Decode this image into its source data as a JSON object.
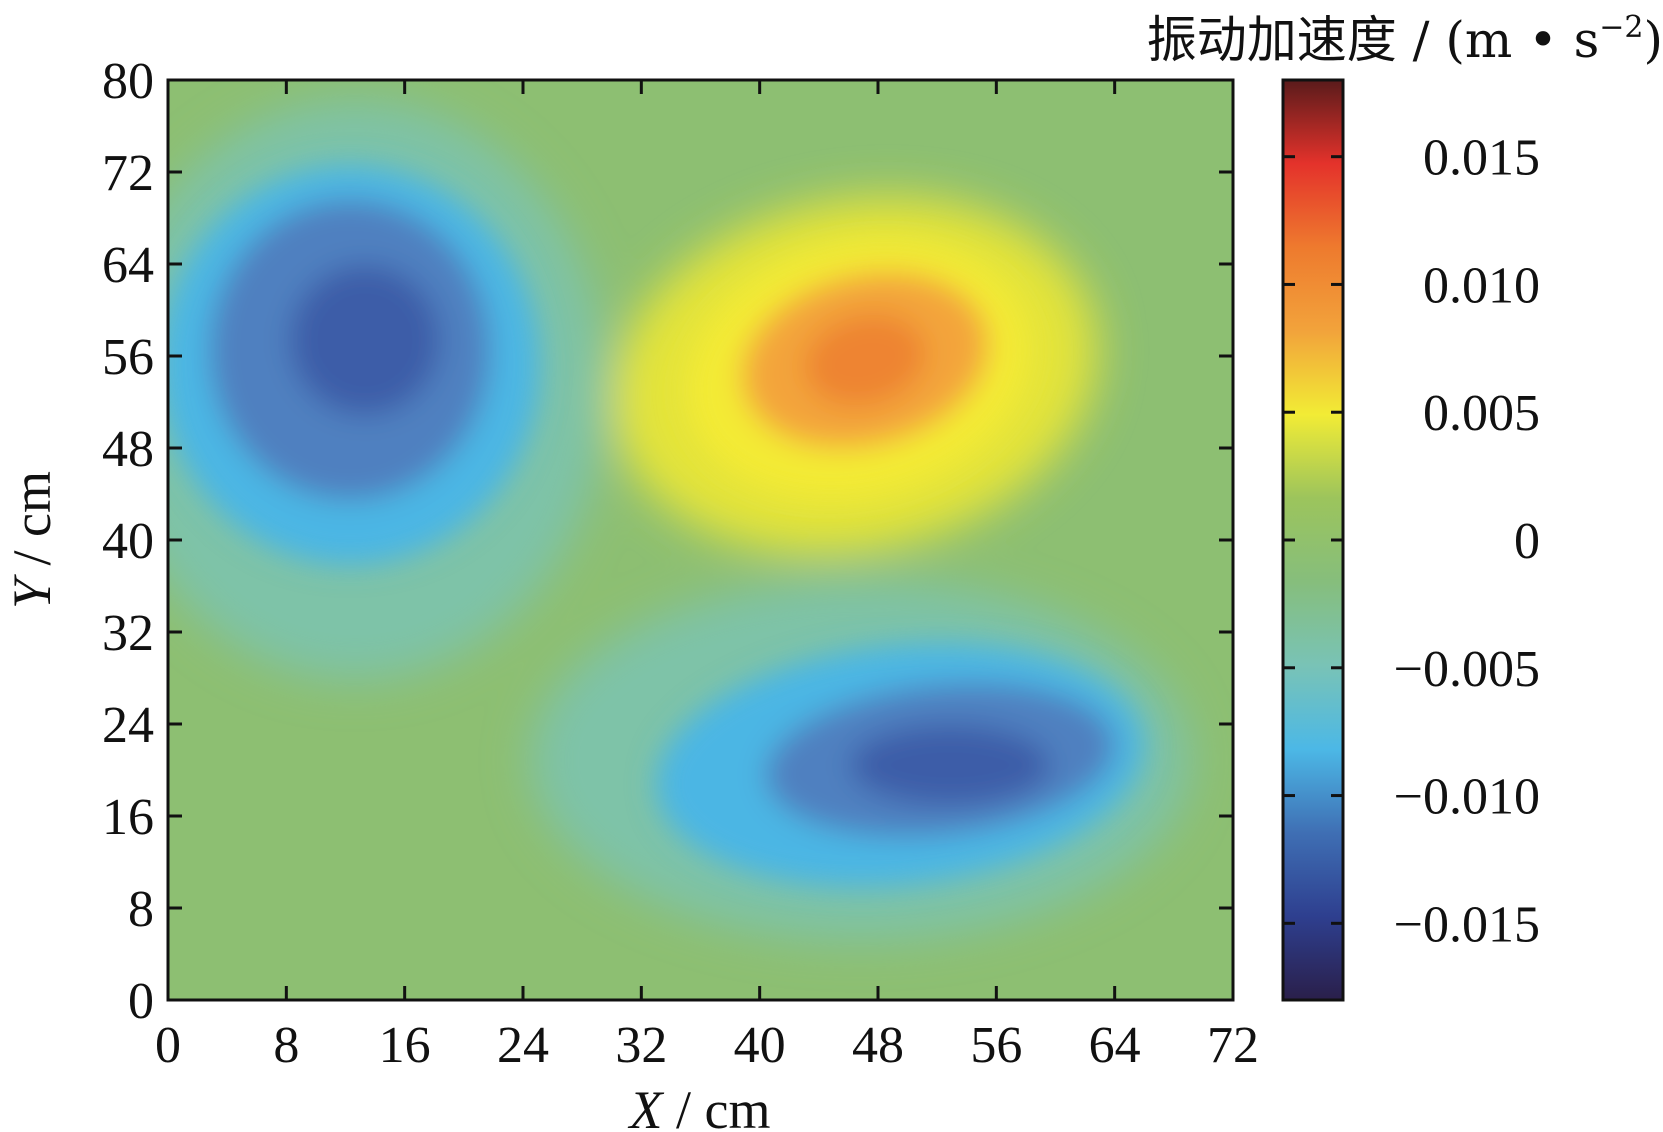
{
  "chart_data": {
    "type": "heatmap",
    "xlabel": {
      "var": "X",
      "unit": " / cm"
    },
    "ylabel": {
      "var": "Y",
      "unit": " / cm"
    },
    "xlim": [
      0,
      72
    ],
    "ylim": [
      0,
      80
    ],
    "xticks": [
      0,
      8,
      16,
      24,
      32,
      40,
      48,
      56,
      64,
      72
    ],
    "yticks": [
      0,
      8,
      16,
      24,
      32,
      40,
      48,
      56,
      64,
      72,
      80
    ],
    "colorbar": {
      "title": "振动加速度 / (m • s",
      "title_sup": "−2",
      "title_close": ")",
      "range": [
        -0.018,
        0.018
      ],
      "ticks": [
        {
          "value": 0.015,
          "label": "0.015"
        },
        {
          "value": 0.01,
          "label": "0.010"
        },
        {
          "value": 0.005,
          "label": "0.005"
        },
        {
          "value": 0,
          "label": "0"
        },
        {
          "value": -0.005,
          "label": "−0.005"
        },
        {
          "value": -0.01,
          "label": "−0.010"
        },
        {
          "value": -0.015,
          "label": "−0.015"
        }
      ],
      "colors": [
        "#2a1f4a",
        "#2e3f8f",
        "#3f6fb4",
        "#4cb8e6",
        "#79c3b6",
        "#86be7c",
        "#9cc45c",
        "#f2ec35",
        "#f2a33b",
        "#ee7a2e",
        "#e4322b",
        "#5a1b1b"
      ]
    },
    "features": [
      {
        "x": 14,
        "y": 57,
        "value": -0.0125
      },
      {
        "x": 47,
        "y": 55,
        "value": 0.0085
      },
      {
        "x": 54,
        "y": 21,
        "value": -0.0125
      }
    ]
  }
}
